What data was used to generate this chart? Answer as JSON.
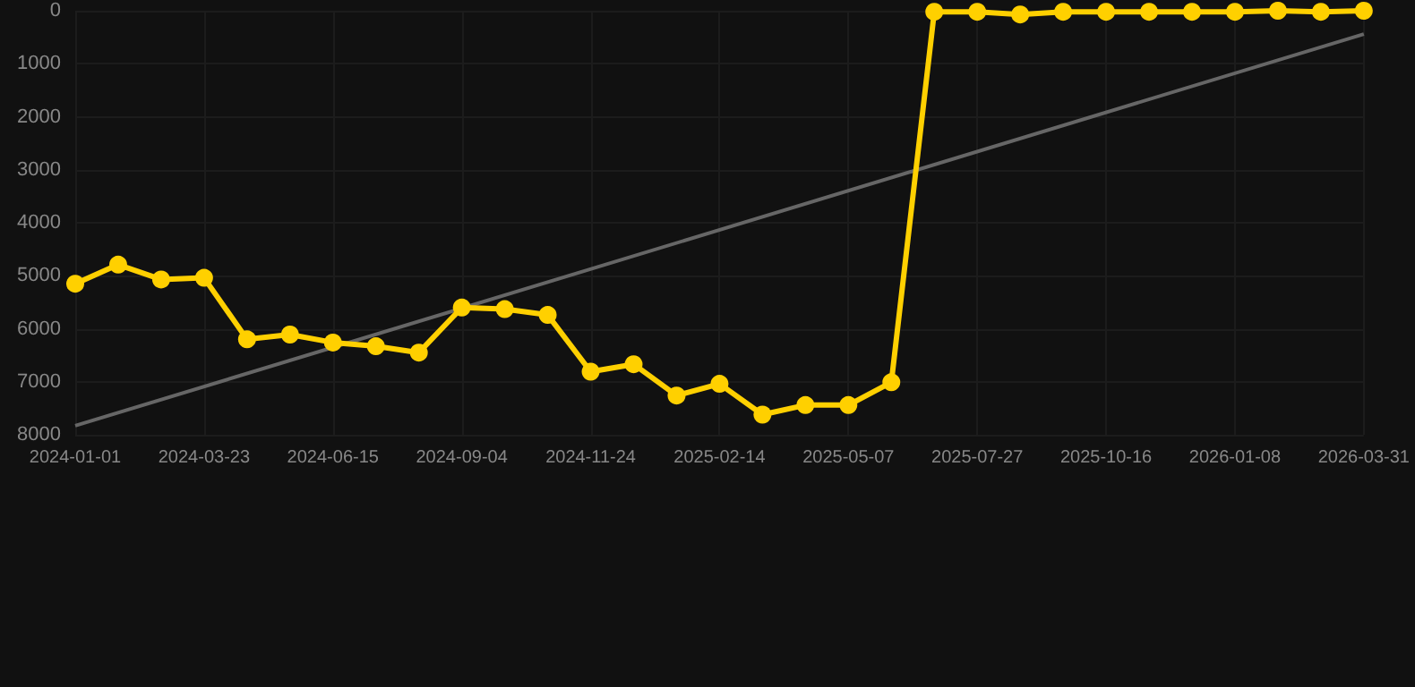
{
  "chart_data": {
    "type": "line",
    "categories": [
      "2024-01-01",
      null,
      null,
      "2024-03-23",
      null,
      null,
      "2024-06-15",
      null,
      null,
      "2024-09-04",
      null,
      null,
      "2024-11-24",
      null,
      null,
      "2025-02-14",
      null,
      null,
      "2025-05-07",
      null,
      null,
      "2025-07-27",
      null,
      null,
      "2025-10-16",
      null,
      null,
      "2026-01-08",
      null,
      null,
      "2026-03-31"
    ],
    "series": [
      {
        "color": "#ffd000",
        "marker": "circle",
        "values": [
          5150,
          4790,
          5070,
          5040,
          6200,
          6110,
          6260,
          6330,
          6450,
          5600,
          5630,
          5740,
          6810,
          6670,
          7260,
          7040,
          7620,
          7440,
          7440,
          7010,
          20,
          20,
          70,
          20,
          20,
          20,
          20,
          20,
          0,
          20,
          0
        ]
      },
      {
        "color": "#666666",
        "marker": "none",
        "values": [
          7830,
          null,
          null,
          null,
          null,
          null,
          null,
          null,
          null,
          null,
          null,
          null,
          null,
          null,
          null,
          null,
          null,
          null,
          null,
          null,
          null,
          null,
          null,
          null,
          null,
          null,
          null,
          null,
          null,
          null,
          440
        ]
      }
    ],
    "ylim": [
      8000,
      0
    ],
    "yticks": [
      0,
      1000,
      2000,
      3000,
      4000,
      5000,
      6000,
      7000,
      8000
    ],
    "grid": true
  }
}
